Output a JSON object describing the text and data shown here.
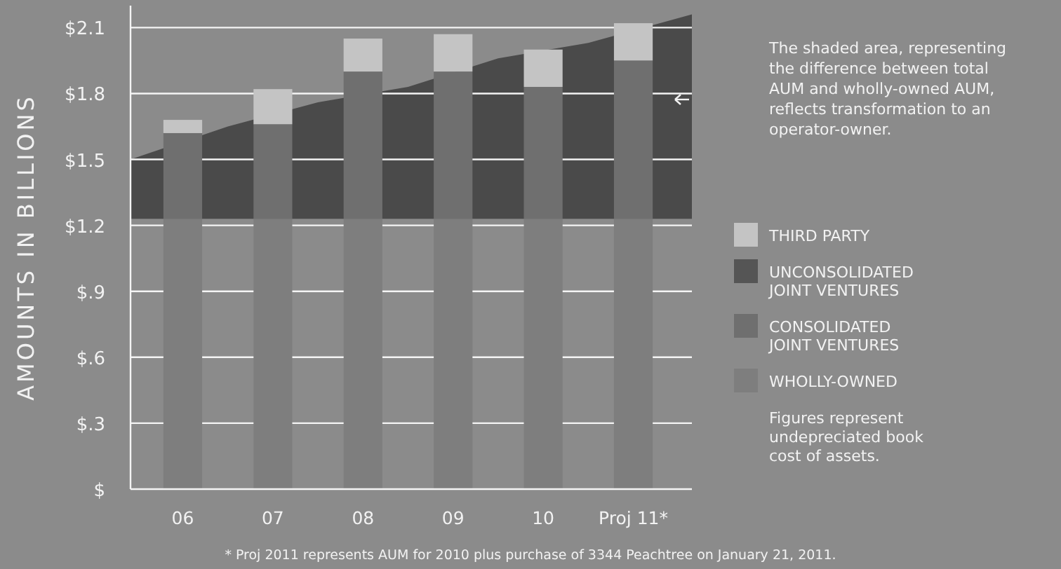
{
  "chart_data": {
    "type": "bar",
    "ylabel": "AMOUNTS IN BILLIONS",
    "x": [
      2006,
      2007,
      2008,
      2009,
      2010,
      2011
    ],
    "xlim": [
      2005.42,
      2011.65
    ],
    "xticks": [
      {
        "value": 2006,
        "label": "06"
      },
      {
        "value": 2007,
        "label": "07"
      },
      {
        "value": 2008,
        "label": "08"
      },
      {
        "value": 2009,
        "label": "09"
      },
      {
        "value": 2010,
        "label": "10"
      },
      {
        "value": 2011,
        "label": "Proj 11*"
      }
    ],
    "series": [
      {
        "type": "area",
        "color": "#4a4a4a",
        "x": [
          2005.42,
          2006.5,
          2007.5,
          2008.5,
          2009.5,
          2010.5,
          2011.65
        ],
        "values": [
          1.5,
          1.65,
          1.76,
          1.83,
          1.96,
          2.03,
          2.16
        ]
      },
      {
        "name": "WHOLLY-OWNED",
        "color": "#7e7e7e",
        "values": [
          1.23,
          1.23,
          1.23,
          1.23,
          1.23,
          1.23
        ],
        "base": [
          0,
          0,
          0,
          0,
          0,
          0
        ]
      },
      {
        "name": "CONSOLIDATED JOINT VENTURES",
        "color": "#6f6f6f",
        "values": [
          0.39,
          0.43,
          0.67,
          0.67,
          0.6,
          0.72
        ],
        "base": [
          1.23,
          1.23,
          1.23,
          1.23,
          1.23,
          1.23
        ]
      },
      {
        "name": "UNCONSOLIDATED JOINT VENTURES",
        "color": "#555555",
        "values": [
          null,
          null,
          null,
          null,
          null,
          null
        ]
      },
      {
        "name": "THIRD PARTY",
        "color": "#c4c4c4",
        "values": [
          0.06,
          0.16,
          0.15,
          0.17,
          0.17,
          0.17
        ],
        "base": [
          1.62,
          1.66,
          1.9,
          1.9,
          1.83,
          1.95
        ]
      }
    ],
    "ylim": [
      0,
      2.2
    ],
    "yticks": [
      {
        "value": 0,
        "label": "$"
      },
      {
        "value": 0.3,
        "label": "$.3"
      },
      {
        "value": 0.6,
        "label": "$.6"
      },
      {
        "value": 0.9,
        "label": "$.9"
      },
      {
        "value": 1.2,
        "label": "$1.2"
      },
      {
        "value": 1.5,
        "label": "$1.5"
      },
      {
        "value": 1.8,
        "label": "$1.8"
      },
      {
        "value": 2.1,
        "label": "$2.1"
      }
    ],
    "grid": "y",
    "legend": "right",
    "annotations": [
      "The shaded area, representing the difference between total AUM and wholly-owned AUM, reflects transformation to an operator-owner.",
      "Figures represent undepreciated book cost of assets.",
      "* Proj 2011 represents AUM for 2010 plus purchase of 3344 Peachtree on January 21, 2011."
    ]
  }
}
